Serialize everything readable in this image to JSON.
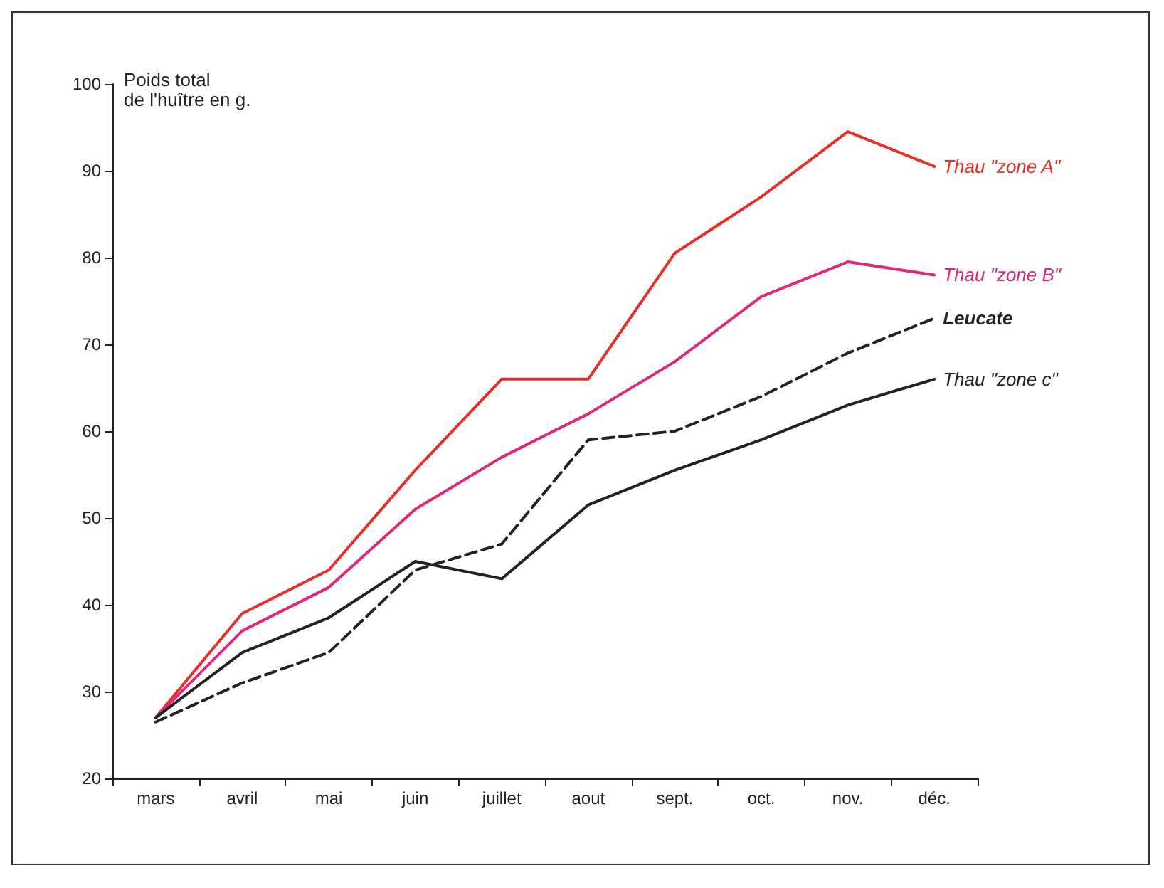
{
  "chart_data": {
    "type": "line",
    "ylabel": "Poids total\nde l'huître en g.",
    "categories": [
      "mars",
      "avril",
      "mai",
      "juin",
      "juillet",
      "aout",
      "sept.",
      "oct.",
      "nov.",
      "déc."
    ],
    "series": [
      {
        "name": "Thau \"zone A\"",
        "color": "#e8302a",
        "values": [
          27,
          39,
          44,
          55.5,
          66,
          66,
          80.5,
          87,
          94.5,
          90.5
        ]
      },
      {
        "name": "Thau \"zone B\"",
        "color": "#e0287a",
        "values": [
          27,
          37,
          42,
          51,
          57,
          62,
          68,
          75.5,
          79.5,
          78
        ]
      },
      {
        "name": "Leucate",
        "color": "#222222",
        "line_style": "dashed",
        "values": [
          26.5,
          31,
          34.5,
          44,
          47,
          59,
          60,
          64,
          69,
          73
        ]
      },
      {
        "name": "Thau \"zone c\"",
        "color": "#222222",
        "values": [
          27,
          34.5,
          38.5,
          45,
          43,
          51.5,
          55.5,
          59,
          63,
          66
        ]
      }
    ],
    "ylim": [
      20,
      100
    ],
    "yticks": [
      20,
      30,
      40,
      50,
      60,
      70,
      80,
      90,
      100
    ],
    "grid": false,
    "legend": false,
    "marker": "none",
    "line_style": "solid"
  }
}
